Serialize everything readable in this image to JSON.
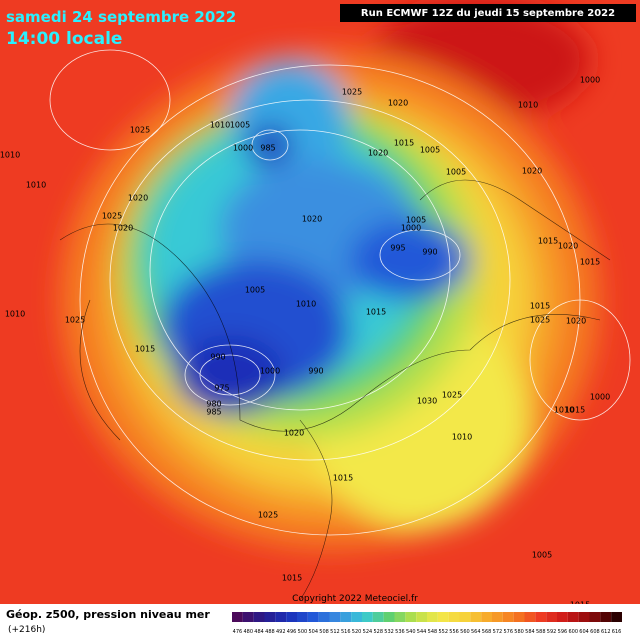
{
  "header": {
    "title": "samedi 24 septembre 2022",
    "subtitle": "14:00 locale",
    "run": "Run ECMWF 12Z du jeudi 15 septembre 2022"
  },
  "map": {
    "pressure_labels": [
      1025,
      1020,
      1000,
      1010,
      1025,
      1010,
      1005,
      1000,
      985,
      1015,
      1020,
      1005,
      1005,
      1020,
      1010,
      1010,
      1020,
      1025,
      1020,
      1020,
      1005,
      1000,
      995,
      990,
      1015,
      1020,
      1015,
      1005,
      1010,
      1015,
      1015,
      1025,
      1020,
      1010,
      1025,
      1015,
      990,
      1000,
      990,
      975,
      980,
      985,
      1030,
      1025,
      1015,
      1020,
      1010,
      1015,
      1025,
      1005,
      1015,
      1015,
      1000,
      1010
    ]
  },
  "footer": {
    "copyright": "Copyright 2022 Meteociel.fr",
    "legend_title": "Géop. z500, pression niveau mer",
    "lead_time": "(+216h)",
    "scale": [
      476,
      480,
      484,
      488,
      492,
      496,
      500,
      504,
      508,
      512,
      516,
      520,
      524,
      528,
      532,
      536,
      540,
      544,
      548,
      552,
      556,
      560,
      564,
      568,
      572,
      576,
      580,
      584,
      588,
      592,
      596,
      600,
      604,
      608,
      612,
      616
    ]
  }
}
